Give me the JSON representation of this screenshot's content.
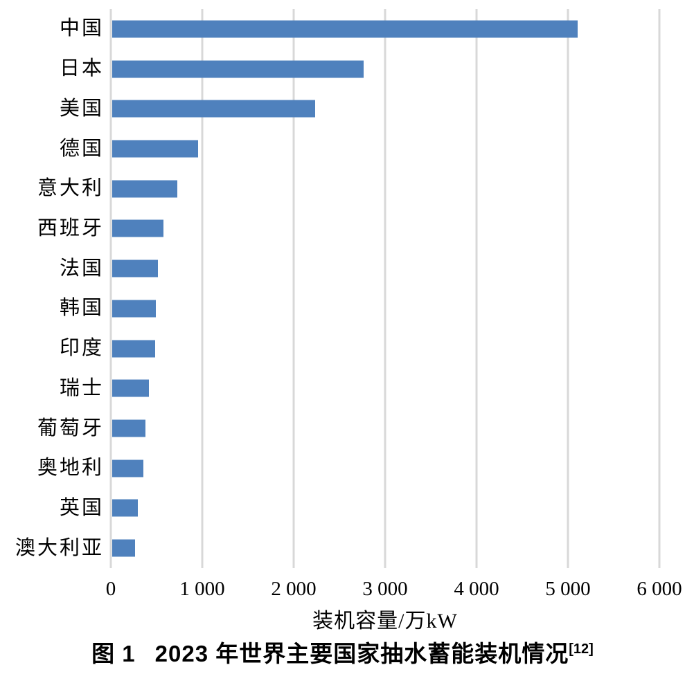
{
  "figure": {
    "caption_prefix": "图 1",
    "caption_title": "2023 年世界主要国家抽水蓄能装机情况",
    "caption_superscript": "[12]"
  },
  "chart_data": {
    "type": "bar",
    "orientation": "horizontal",
    "title": "",
    "xlabel": "装机容量/万kW",
    "ylabel": "",
    "categories": [
      "中国",
      "日本",
      "美国",
      "德国",
      "意大利",
      "西班牙",
      "法国",
      "韩国",
      "印度",
      "瑞士",
      "葡萄牙",
      "奥地利",
      "英国",
      "澳大利亚"
    ],
    "values": [
      5094,
      2750,
      2220,
      940,
      710,
      560,
      500,
      475,
      470,
      400,
      365,
      340,
      280,
      250
    ],
    "unit": "万kW",
    "xlim": [
      0,
      6000
    ],
    "x_ticks": [
      0,
      1000,
      2000,
      3000,
      4000,
      5000,
      6000
    ],
    "x_tick_labels": [
      "0",
      "1 000",
      "2 000",
      "3 000",
      "4 000",
      "5 000",
      "6 000"
    ],
    "grid": "vertical",
    "legend": "none",
    "bar_color": "#4f81bd",
    "gridline_color": "#d8d8d8"
  }
}
